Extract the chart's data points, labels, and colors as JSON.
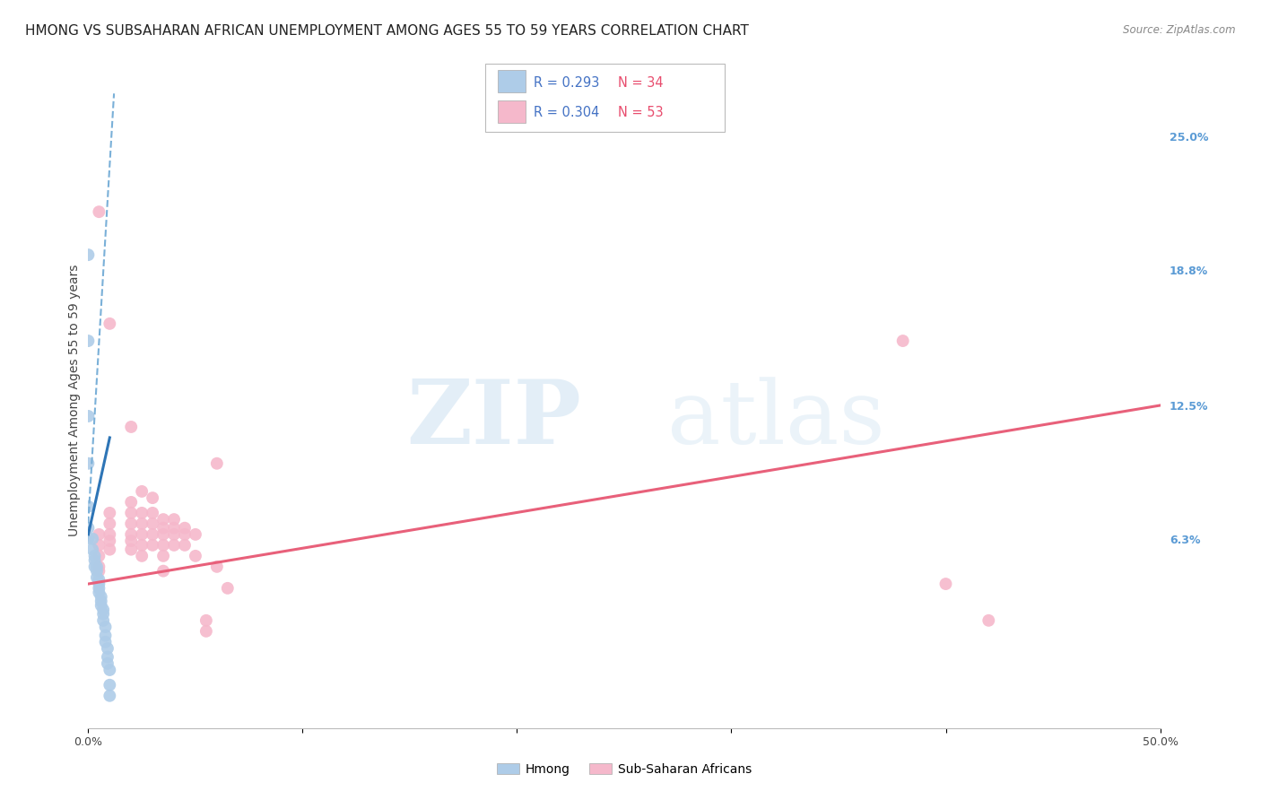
{
  "title": "HMONG VS SUBSAHARAN AFRICAN UNEMPLOYMENT AMONG AGES 55 TO 59 YEARS CORRELATION CHART",
  "source": "Source: ZipAtlas.com",
  "ylabel": "Unemployment Among Ages 55 to 59 years",
  "xlim": [
    0.0,
    0.5
  ],
  "ylim": [
    -0.025,
    0.28
  ],
  "ytick_vals": [
    0.0,
    0.063,
    0.125,
    0.188,
    0.25
  ],
  "ytick_labels": [
    "",
    "6.3%",
    "12.5%",
    "18.8%",
    "25.0%"
  ],
  "xtick_vals": [
    0.0,
    0.1,
    0.2,
    0.3,
    0.4,
    0.5
  ],
  "xtick_labels": [
    "0.0%",
    "",
    "",
    "",
    "",
    "50.0%"
  ],
  "legend_entries": [
    {
      "label": "Hmong",
      "color": "#aecce8",
      "R": "0.293",
      "N": "34"
    },
    {
      "label": "Sub-Saharan Africans",
      "color": "#f5b8cb",
      "R": "0.304",
      "N": "53"
    }
  ],
  "hmong_scatter": [
    [
      0.0,
      0.195
    ],
    [
      0.0,
      0.155
    ],
    [
      0.0,
      0.12
    ],
    [
      0.0,
      0.098
    ],
    [
      0.0,
      0.078
    ],
    [
      0.0,
      0.068
    ],
    [
      0.0,
      0.063
    ],
    [
      0.002,
      0.063
    ],
    [
      0.002,
      0.058
    ],
    [
      0.003,
      0.055
    ],
    [
      0.003,
      0.053
    ],
    [
      0.003,
      0.05
    ],
    [
      0.004,
      0.05
    ],
    [
      0.004,
      0.048
    ],
    [
      0.004,
      0.045
    ],
    [
      0.005,
      0.044
    ],
    [
      0.005,
      0.042
    ],
    [
      0.005,
      0.04
    ],
    [
      0.005,
      0.038
    ],
    [
      0.006,
      0.036
    ],
    [
      0.006,
      0.034
    ],
    [
      0.006,
      0.032
    ],
    [
      0.007,
      0.03
    ],
    [
      0.007,
      0.028
    ],
    [
      0.007,
      0.025
    ],
    [
      0.008,
      0.022
    ],
    [
      0.008,
      0.018
    ],
    [
      0.008,
      0.015
    ],
    [
      0.009,
      0.012
    ],
    [
      0.009,
      0.008
    ],
    [
      0.009,
      0.005
    ],
    [
      0.01,
      0.002
    ],
    [
      0.01,
      -0.005
    ],
    [
      0.01,
      -0.01
    ]
  ],
  "subsaharan_scatter": [
    [
      0.005,
      0.215
    ],
    [
      0.005,
      0.065
    ],
    [
      0.005,
      0.06
    ],
    [
      0.005,
      0.055
    ],
    [
      0.005,
      0.05
    ],
    [
      0.005,
      0.048
    ],
    [
      0.01,
      0.163
    ],
    [
      0.01,
      0.075
    ],
    [
      0.01,
      0.07
    ],
    [
      0.01,
      0.065
    ],
    [
      0.01,
      0.062
    ],
    [
      0.01,
      0.058
    ],
    [
      0.02,
      0.115
    ],
    [
      0.02,
      0.08
    ],
    [
      0.02,
      0.075
    ],
    [
      0.02,
      0.07
    ],
    [
      0.02,
      0.065
    ],
    [
      0.02,
      0.062
    ],
    [
      0.02,
      0.058
    ],
    [
      0.025,
      0.085
    ],
    [
      0.025,
      0.075
    ],
    [
      0.025,
      0.07
    ],
    [
      0.025,
      0.065
    ],
    [
      0.025,
      0.06
    ],
    [
      0.025,
      0.055
    ],
    [
      0.03,
      0.082
    ],
    [
      0.03,
      0.075
    ],
    [
      0.03,
      0.07
    ],
    [
      0.03,
      0.065
    ],
    [
      0.03,
      0.06
    ],
    [
      0.035,
      0.072
    ],
    [
      0.035,
      0.068
    ],
    [
      0.035,
      0.065
    ],
    [
      0.035,
      0.06
    ],
    [
      0.035,
      0.055
    ],
    [
      0.035,
      0.048
    ],
    [
      0.04,
      0.072
    ],
    [
      0.04,
      0.068
    ],
    [
      0.04,
      0.065
    ],
    [
      0.04,
      0.06
    ],
    [
      0.045,
      0.068
    ],
    [
      0.045,
      0.065
    ],
    [
      0.045,
      0.06
    ],
    [
      0.05,
      0.065
    ],
    [
      0.05,
      0.055
    ],
    [
      0.055,
      0.025
    ],
    [
      0.055,
      0.02
    ],
    [
      0.06,
      0.098
    ],
    [
      0.06,
      0.05
    ],
    [
      0.065,
      0.04
    ],
    [
      0.38,
      0.155
    ],
    [
      0.4,
      0.042
    ],
    [
      0.42,
      0.025
    ]
  ],
  "hmong_trendline_dashed": {
    "x": [
      -0.002,
      0.012
    ],
    "y": [
      0.038,
      0.27
    ],
    "color": "#7ab0d8",
    "linestyle": "dashed",
    "linewidth": 1.5
  },
  "hmong_trendline_solid": {
    "x": [
      0.0,
      0.01
    ],
    "y": [
      0.065,
      0.11
    ],
    "color": "#2e75b6",
    "linestyle": "solid",
    "linewidth": 2.2
  },
  "subsaharan_trendline": {
    "x": [
      0.0,
      0.5
    ],
    "y": [
      0.042,
      0.125
    ],
    "color": "#e8607a",
    "linestyle": "solid",
    "linewidth": 2.2
  },
  "scatter_size": 100,
  "hmong_color": "#aecce8",
  "subsaharan_color": "#f5b8cb",
  "grid_color": "#e0e0e0",
  "grid_linestyle": "dotted",
  "background_color": "#ffffff",
  "title_fontsize": 11,
  "axis_label_fontsize": 10,
  "tick_fontsize": 9,
  "right_tick_color": "#5b9bd5",
  "source_text": "Source: ZipAtlas.com"
}
